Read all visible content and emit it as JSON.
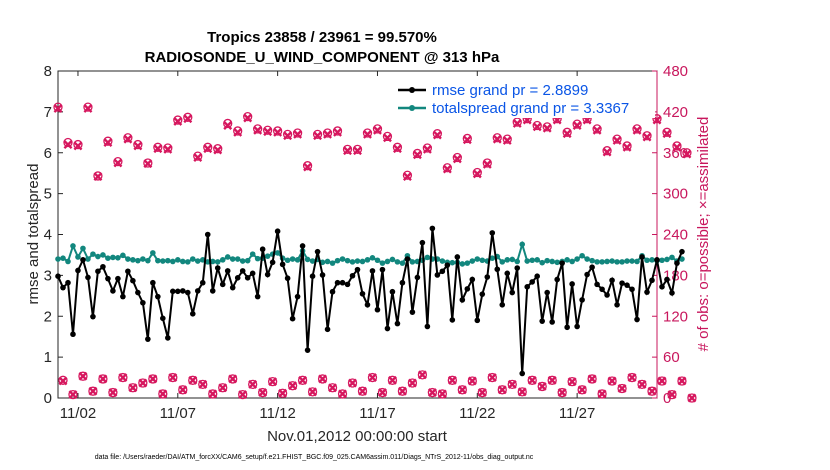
{
  "chart_data": {
    "type": "line",
    "title": "Tropics 23858 / 23961 = 99.570%",
    "subtitle": "RADIOSONDE_U_WIND_COMPONENT @ 313 hPa",
    "xlabel": "Nov.01,2012 00:00:00 start",
    "ylabel": "rmse and totalspread",
    "y2label": "# of obs: o=possible; ×=assimilated",
    "footer": "data file: /Users/raeder/DAI/ATM_forcXX/CAM6_setup/f.e21.FHIST_BGC.f09_025.CAM6assim.011/Diags_NTrS_2012-11/obs_diag_output.nc",
    "xlim": [
      0.5,
      30.5
    ],
    "ylim": [
      0,
      8
    ],
    "y2lim": [
      0,
      480
    ],
    "yticks": [
      0,
      1,
      2,
      3,
      4,
      5,
      6,
      7,
      8
    ],
    "y2ticks": [
      0,
      60,
      120,
      180,
      240,
      300,
      360,
      420,
      480
    ],
    "xticks": [
      {
        "value": 1.5,
        "label": "11/02"
      },
      {
        "value": 6.5,
        "label": "11/07"
      },
      {
        "value": 11.5,
        "label": "11/12"
      },
      {
        "value": 16.5,
        "label": "11/17"
      },
      {
        "value": 21.5,
        "label": "11/22"
      },
      {
        "value": 26.5,
        "label": "11/27"
      }
    ],
    "legend": {
      "position": "top-right"
    },
    "colors": {
      "rmse": "#000000",
      "spread": "#12877e",
      "obs": "#d6175e",
      "legend_text": "#0a55e6",
      "right_axis": "#c8175d"
    },
    "series": [
      {
        "name": "rmse grand pr = 2.8899",
        "x_start": 0.5,
        "x_step": 0.25,
        "values": [
          2.98,
          2.7,
          2.82,
          1.56,
          3.12,
          3.38,
          2.95,
          1.99,
          3.1,
          3.21,
          2.92,
          2.62,
          2.92,
          2.48,
          3.1,
          2.87,
          2.58,
          2.33,
          1.44,
          2.82,
          2.48,
          1.95,
          1.47,
          2.61,
          2.61,
          2.62,
          2.58,
          2.06,
          2.62,
          2.82,
          4.0,
          2.62,
          3.18,
          2.78,
          3.11,
          2.7,
          2.94,
          3.11,
          2.94,
          3.05,
          2.48,
          3.64,
          3.02,
          3.32,
          4.08,
          3.27,
          2.93,
          1.94,
          2.48,
          3.72,
          1.17,
          2.98,
          3.58,
          3.01,
          1.68,
          2.6,
          2.82,
          2.82,
          2.78,
          2.99,
          3.14,
          2.55,
          2.28,
          3.11,
          2.16,
          3.14,
          1.7,
          2.6,
          1.82,
          2.82,
          3.4,
          2.1,
          2.95,
          3.8,
          1.75,
          4.15,
          3.01,
          3.1,
          3.25,
          1.91,
          3.45,
          2.4,
          2.67,
          2.9,
          1.9,
          2.54,
          2.96,
          4.04,
          3.15,
          2.28,
          3.05,
          2.58,
          3.18,
          0.6,
          2.72,
          2.84,
          2.98,
          1.88,
          2.58,
          1.86,
          2.9,
          3.3,
          1.73,
          2.79,
          1.75,
          2.4,
          3.02,
          3.2,
          2.78,
          2.66,
          2.52,
          2.88,
          2.28,
          2.81,
          2.76,
          2.66,
          1.92,
          3.45,
          2.59,
          2.88,
          3.38,
          2.72,
          2.9,
          2.57,
          3.3,
          3.58
        ]
      },
      {
        "name": "totalspread grand pr = 3.3367",
        "x_start": 0.5,
        "x_step": 0.25,
        "values": [
          3.4,
          3.42,
          3.34,
          3.72,
          3.45,
          3.66,
          3.4,
          3.52,
          3.46,
          3.5,
          3.42,
          3.44,
          3.43,
          3.49,
          3.4,
          3.38,
          3.36,
          3.4,
          3.36,
          3.55,
          3.36,
          3.35,
          3.36,
          3.34,
          3.38,
          3.34,
          3.33,
          3.4,
          3.35,
          3.38,
          3.33,
          3.34,
          3.33,
          3.38,
          3.45,
          3.4,
          3.4,
          3.35,
          3.36,
          3.52,
          3.41,
          3.42,
          3.47,
          3.52,
          3.55,
          3.42,
          3.37,
          3.4,
          3.38,
          3.6,
          3.39,
          3.35,
          3.39,
          3.32,
          3.34,
          3.3,
          3.36,
          3.4,
          3.36,
          3.33,
          3.35,
          3.34,
          3.38,
          3.43,
          3.37,
          3.3,
          3.34,
          3.39,
          3.33,
          3.3,
          3.48,
          3.33,
          3.34,
          3.37,
          3.44,
          3.4,
          3.4,
          3.35,
          3.32,
          3.31,
          3.32,
          3.28,
          3.3,
          3.35,
          3.4,
          3.37,
          3.35,
          3.42,
          3.46,
          3.33,
          3.38,
          3.39,
          3.34,
          3.76,
          3.35,
          3.37,
          3.38,
          3.31,
          3.36,
          3.34,
          3.32,
          3.34,
          3.38,
          3.34,
          3.4,
          3.48,
          3.4,
          3.36,
          3.33,
          3.33,
          3.34,
          3.35,
          3.33,
          3.33,
          3.35,
          3.35,
          3.34,
          3.48,
          3.37,
          3.38,
          3.36,
          3.37,
          3.39,
          3.44,
          3.35,
          3.4
        ]
      },
      {
        "name": "obs possible",
        "axis": "right",
        "x_start": 0.5,
        "x_step": 0.25,
        "values": [
          427,
          26,
          375,
          5,
          372,
          32,
          427,
          10,
          326,
          28,
          377,
          8,
          347,
          30,
          382,
          15,
          372,
          22,
          345,
          28,
          368,
          6,
          367,
          30,
          408,
          12,
          412,
          26,
          355,
          20,
          368,
          6,
          366,
          15,
          403,
          28,
          392,
          5,
          413,
          20,
          395,
          8,
          393,
          24,
          392,
          7,
          387,
          18,
          389,
          26,
          341,
          9,
          387,
          28,
          389,
          15,
          392,
          6,
          365,
          22,
          365,
          10,
          389,
          30,
          395,
          8,
          384,
          26,
          368,
          10,
          327,
          22,
          359,
          34,
          367,
          8,
          388,
          6,
          338,
          26,
          353,
          12,
          381,
          25,
          331,
          8,
          345,
          30,
          382,
          12,
          380,
          20,
          405,
          9,
          410,
          26,
          400,
          17,
          398,
          26,
          410,
          8,
          390,
          24,
          402,
          12,
          410,
          28,
          395,
          6,
          363,
          25,
          380,
          14,
          370,
          30,
          395,
          20,
          385,
          10,
          410,
          25,
          390,
          5,
          370,
          25,
          360,
          0
        ]
      },
      {
        "name": "obs assimilated",
        "axis": "right",
        "x_start": 0.5,
        "x_step": 0.25,
        "values": [
          425,
          25,
          372,
          5,
          370,
          32,
          425,
          10,
          325,
          28,
          375,
          8,
          345,
          30,
          380,
          15,
          370,
          22,
          344,
          28,
          366,
          6,
          365,
          30,
          406,
          12,
          410,
          26,
          353,
          20,
          366,
          6,
          364,
          15,
          400,
          28,
          390,
          5,
          411,
          20,
          393,
          8,
          391,
          24,
          390,
          7,
          385,
          18,
          387,
          26,
          339,
          9,
          385,
          28,
          387,
          15,
          390,
          6,
          363,
          22,
          363,
          10,
          387,
          30,
          393,
          8,
          382,
          26,
          366,
          10,
          325,
          22,
          357,
          34,
          365,
          8,
          386,
          6,
          336,
          26,
          351,
          12,
          379,
          25,
          329,
          8,
          343,
          30,
          380,
          12,
          378,
          20,
          403,
          9,
          408,
          26,
          398,
          17,
          396,
          26,
          408,
          8,
          388,
          24,
          400,
          12,
          408,
          28,
          393,
          6,
          361,
          25,
          378,
          14,
          368,
          30,
          393,
          20,
          383,
          10,
          408,
          25,
          388,
          5,
          368,
          25,
          358,
          0
        ]
      }
    ]
  }
}
